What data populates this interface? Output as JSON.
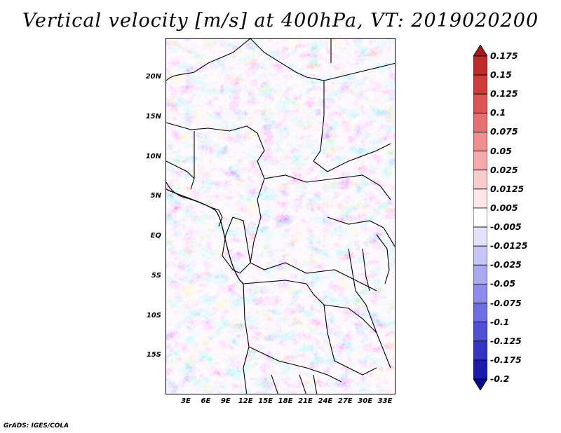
{
  "title": "Vertical velocity [m/s] at 400hPa, VT: 2019020200",
  "footer": "GrADS: IGES/COLA",
  "map": {
    "lat_labels": [
      "20N",
      "15N",
      "10N",
      "5N",
      "EQ",
      "5S",
      "10S",
      "15S"
    ],
    "lat_values": [
      20,
      15,
      10,
      5,
      0,
      -5,
      -10,
      -15
    ],
    "lon_labels": [
      "3E",
      "6E",
      "9E",
      "12E",
      "15E",
      "18E",
      "21E",
      "24E",
      "27E",
      "30E",
      "33E"
    ],
    "lon_values": [
      3,
      6,
      9,
      12,
      15,
      18,
      21,
      24,
      27,
      30,
      33
    ]
  },
  "colorbar": {
    "labels": [
      "0.175",
      "0.15",
      "0.125",
      "0.1",
      "0.075",
      "0.05",
      "0.025",
      "0.0125",
      "0.005",
      "-0.005",
      "-0.0125",
      "-0.025",
      "-0.05",
      "-0.075",
      "-0.1",
      "-0.125",
      "-0.175",
      "-0.2"
    ],
    "colors": [
      "#a41b1b",
      "#bf2a2a",
      "#d23b3b",
      "#de5454",
      "#e67070",
      "#ee8e8e",
      "#f4aaaa",
      "#f9cccc",
      "#fde6e6",
      "#ffffff",
      "#e2e2fb",
      "#c6c6f6",
      "#a9a9f0",
      "#8c8cea",
      "#6e6ee4",
      "#5050d6",
      "#3434c2",
      "#1c1cac",
      "#0a0a8a"
    ]
  }
}
